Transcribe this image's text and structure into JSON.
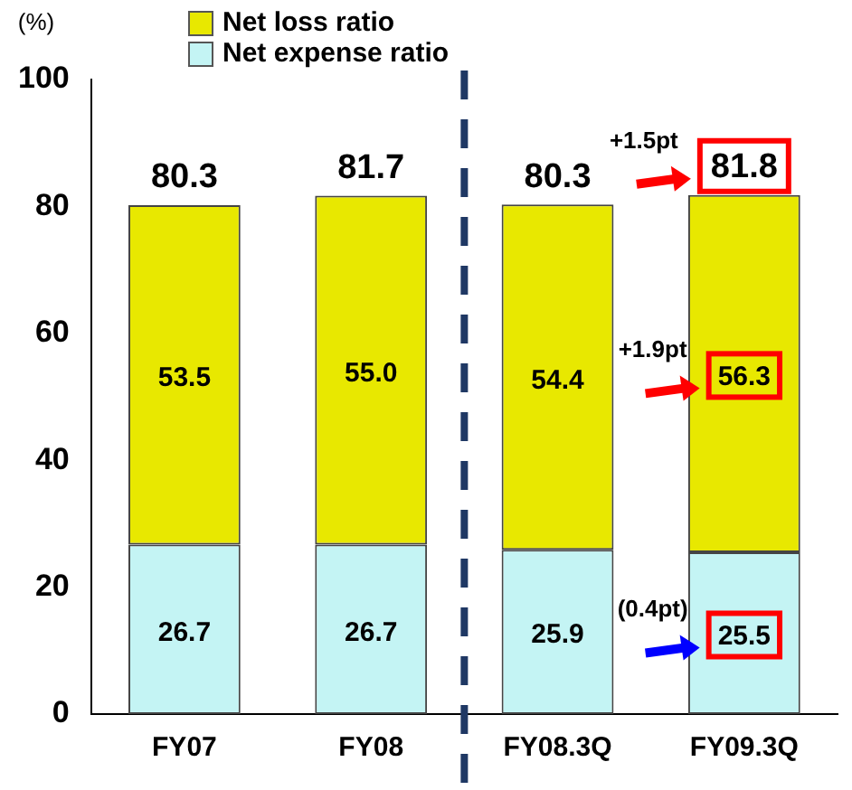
{
  "chart_data": {
    "type": "bar",
    "stacked": true,
    "ylabel": "(%)",
    "categories": [
      "FY07",
      "FY08",
      "FY08.3Q",
      "FY09.3Q"
    ],
    "series": [
      {
        "name": "Net expense ratio",
        "color": "#c4f4f4",
        "values": [
          26.7,
          26.7,
          25.9,
          25.5
        ]
      },
      {
        "name": "Net loss ratio",
        "color": "#e8e800",
        "values": [
          53.5,
          55.0,
          54.4,
          56.3
        ],
        "value_labels": [
          "53.5",
          "55.0",
          "54.4",
          "56.3"
        ]
      }
    ],
    "ylim": [
      0,
      100
    ],
    "yticks": [
      0,
      20,
      40,
      60,
      80,
      100
    ],
    "grid": false,
    "legend": "top left",
    "data_labels": true,
    "totals": [
      "80.3",
      "81.7",
      "80.3",
      "81.8"
    ],
    "annotations": [
      "+1.5pt",
      "+1.9pt",
      "(0.4pt)"
    ]
  }
}
